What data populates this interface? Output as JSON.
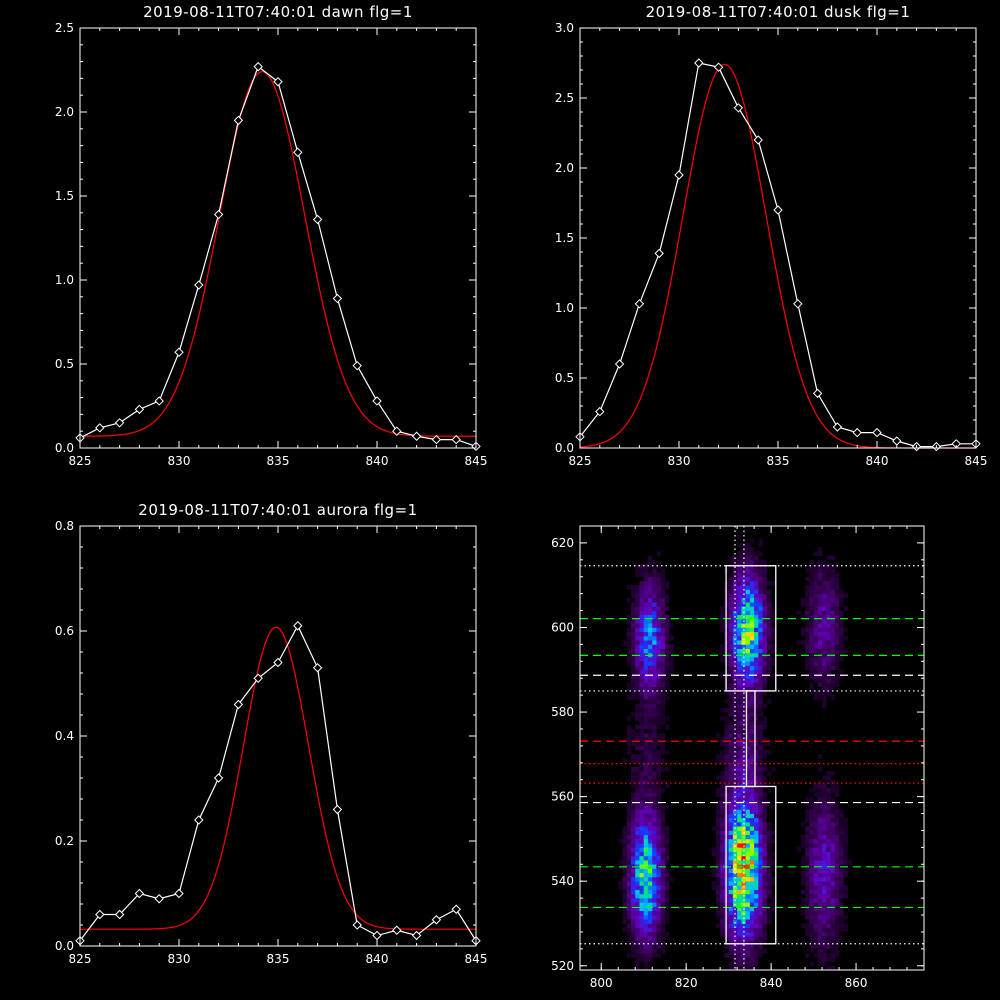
{
  "chart_data": [
    {
      "type": "line",
      "title": "2019-08-11T07:40:01 dawn flg=1",
      "xlim": [
        825,
        845
      ],
      "ylim": [
        0,
        2.5
      ],
      "xticks": [
        "825",
        "830",
        "835",
        "840",
        "845"
      ],
      "yticks": [
        "0.0",
        "0.5",
        "1.0",
        "1.5",
        "2.0",
        "2.5"
      ],
      "series": [
        {
          "color": "#ffffff",
          "marker": "diamond",
          "x": [
            825,
            826,
            827,
            828,
            829,
            830,
            831,
            832,
            833,
            834,
            835,
            836,
            837,
            838,
            839,
            840,
            841,
            842,
            843,
            844,
            845
          ],
          "y": [
            0.06,
            0.12,
            0.15,
            0.23,
            0.28,
            0.57,
            0.97,
            1.39,
            1.95,
            2.27,
            2.18,
            1.76,
            1.36,
            0.89,
            0.49,
            0.28,
            0.1,
            0.07,
            0.05,
            0.05,
            0.01
          ]
        },
        {
          "color": "#ff0000",
          "fit": "gaussian",
          "amp": 2.17,
          "center": 834.2,
          "sigma": 2.15,
          "base": 0.07
        }
      ]
    },
    {
      "type": "line",
      "title": "2019-08-11T07:40:01 dusk flg=1",
      "xlim": [
        825,
        845
      ],
      "ylim": [
        0,
        3.0
      ],
      "xticks": [
        "825",
        "830",
        "835",
        "840",
        "845"
      ],
      "yticks": [
        "0.0",
        "0.5",
        "1.0",
        "1.5",
        "2.0",
        "2.5",
        "3.0"
      ],
      "series": [
        {
          "color": "#ffffff",
          "marker": "diamond",
          "x": [
            825,
            826,
            827,
            828,
            829,
            830,
            831,
            832,
            833,
            834,
            835,
            836,
            837,
            838,
            839,
            840,
            841,
            842,
            843,
            844,
            845
          ],
          "y": [
            0.08,
            0.26,
            0.6,
            1.03,
            1.39,
            1.95,
            2.75,
            2.72,
            2.43,
            2.2,
            1.7,
            1.03,
            0.39,
            0.15,
            0.11,
            0.11,
            0.05,
            0.01,
            0.01,
            0.03,
            0.03
          ]
        },
        {
          "color": "#ff0000",
          "fit": "gaussian",
          "amp": 2.74,
          "center": 832.3,
          "sigma": 2.1,
          "base": 0.0
        }
      ]
    },
    {
      "type": "line",
      "title": "2019-08-11T07:40:01 aurora flg=1",
      "xlim": [
        825,
        845
      ],
      "ylim": [
        0,
        0.8
      ],
      "xticks": [
        "825",
        "830",
        "835",
        "840",
        "845"
      ],
      "yticks": [
        "0.0",
        "0.2",
        "0.4",
        "0.6",
        "0.8"
      ],
      "series": [
        {
          "color": "#ffffff",
          "marker": "diamond",
          "x": [
            825,
            826,
            827,
            828,
            829,
            830,
            831,
            832,
            833,
            834,
            835,
            836,
            837,
            838,
            839,
            840,
            841,
            842,
            843,
            844,
            845
          ],
          "y": [
            0.01,
            0.06,
            0.06,
            0.1,
            0.09,
            0.1,
            0.24,
            0.32,
            0.46,
            0.51,
            0.54,
            0.61,
            0.53,
            0.26,
            0.04,
            0.02,
            0.03,
            0.02,
            0.05,
            0.07,
            0.01
          ]
        },
        {
          "color": "#ff0000",
          "fit": "gaussian",
          "amp": 0.575,
          "center": 834.9,
          "sigma": 1.65,
          "base": 0.032
        }
      ]
    },
    {
      "type": "heatmap",
      "xlim": [
        795,
        876
      ],
      "ylim": [
        519,
        624
      ],
      "xticks": [
        "800",
        "820",
        "840",
        "860"
      ],
      "yticks": [
        "520",
        "540",
        "560",
        "580",
        "600",
        "620"
      ],
      "boxes": [
        {
          "x": [
            829.4,
            841.1
          ],
          "y": [
            525.2,
            562.4
          ]
        },
        {
          "x": [
            829.4,
            841.1
          ],
          "y": [
            585.0,
            614.6
          ]
        },
        {
          "x": [
            834.2,
            836.2
          ],
          "y": [
            562.4,
            585.0
          ]
        }
      ],
      "hlines": [
        {
          "y": 614.6,
          "color": "#ffffff",
          "style": "dotted"
        },
        {
          "y": 602.1,
          "color": "#00ff00",
          "style": "dashed"
        },
        {
          "y": 593.4,
          "color": "#00ff00",
          "style": "dashed"
        },
        {
          "y": 588.7,
          "color": "#ffffff",
          "style": "dashed"
        },
        {
          "y": 585.0,
          "color": "#ffffff",
          "style": "dotted"
        },
        {
          "y": 573.1,
          "color": "#ff0000",
          "style": "dashed"
        },
        {
          "y": 567.8,
          "color": "#ff0000",
          "style": "dotted"
        },
        {
          "y": 563.2,
          "color": "#ff0000",
          "style": "dotted"
        },
        {
          "y": 558.6,
          "color": "#ffffff",
          "style": "dashed"
        },
        {
          "y": 543.4,
          "color": "#00ff00",
          "style": "dashed"
        },
        {
          "y": 533.8,
          "color": "#00ff00",
          "style": "dashed"
        },
        {
          "y": 525.2,
          "color": "#ffffff",
          "style": "dotted"
        }
      ],
      "vlines": [
        {
          "x": 831.5,
          "color": "#ffffff",
          "style": "dotted"
        },
        {
          "x": 833.6,
          "color": "#ffffff",
          "style": "dotted"
        }
      ],
      "blobs": [
        {
          "x": 810,
          "y": 541,
          "sx": 2.3,
          "sy": 9,
          "amp": 0.6
        },
        {
          "x": 811,
          "y": 597,
          "sx": 2.3,
          "sy": 8,
          "amp": 0.38
        },
        {
          "x": 833,
          "y": 543,
          "sx": 2.6,
          "sy": 10,
          "amp": 0.95
        },
        {
          "x": 834,
          "y": 599,
          "sx": 2.4,
          "sy": 8,
          "amp": 0.7
        },
        {
          "x": 852,
          "y": 542,
          "sx": 2.6,
          "sy": 11,
          "amp": 0.22
        },
        {
          "x": 852,
          "y": 600,
          "sx": 2.6,
          "sy": 9,
          "amp": 0.17
        },
        {
          "x": 810,
          "y": 570,
          "sx": 3,
          "sy": 8,
          "amp": 0.06
        },
        {
          "x": 833,
          "y": 570,
          "sx": 3,
          "sy": 8,
          "amp": 0.12
        }
      ],
      "colormap": "rainbow"
    }
  ]
}
